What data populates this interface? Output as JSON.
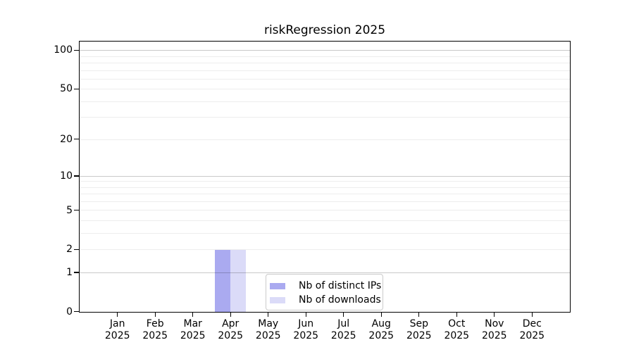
{
  "chart_data": {
    "type": "bar",
    "title": "riskRegression 2025",
    "x_axis": {
      "categories": [
        "Jan 2025",
        "Feb 2025",
        "Mar 2025",
        "Apr 2025",
        "May 2025",
        "Jun 2025",
        "Jul 2025",
        "Aug 2025",
        "Sep 2025",
        "Oct 2025",
        "Nov 2025",
        "Dec 2025"
      ]
    },
    "y_axis": {
      "scale": "log1p",
      "tick_values": [
        0,
        1,
        2,
        5,
        10,
        20,
        50,
        100
      ],
      "ylim": [
        0,
        116.5
      ],
      "decade_gridlines": [
        1,
        10,
        100
      ],
      "minor_gridlines": [
        2,
        3,
        4,
        5,
        6,
        7,
        8,
        9,
        20,
        30,
        40,
        50,
        60,
        70,
        80,
        90
      ]
    },
    "series": [
      {
        "name": "Nb of distinct IPs",
        "color": "#aaaaf0",
        "values": [
          0,
          0,
          0,
          2,
          0,
          0,
          0,
          0,
          0,
          0,
          0,
          0
        ]
      },
      {
        "name": "Nb of downloads",
        "color": "#dbdbf8",
        "values": [
          0,
          0,
          0,
          2,
          0,
          0,
          0,
          0,
          0,
          0,
          0,
          0
        ]
      }
    ],
    "legend": {
      "position": "lower center",
      "items": [
        "Nb of distinct IPs",
        "Nb of downloads"
      ]
    },
    "colors": {
      "axis": "#000000",
      "background": "#ffffff",
      "decade_gridline": "rgba(0,0,0,0.21)",
      "minor_gridline": "rgba(0,0,0,0.07)"
    }
  }
}
